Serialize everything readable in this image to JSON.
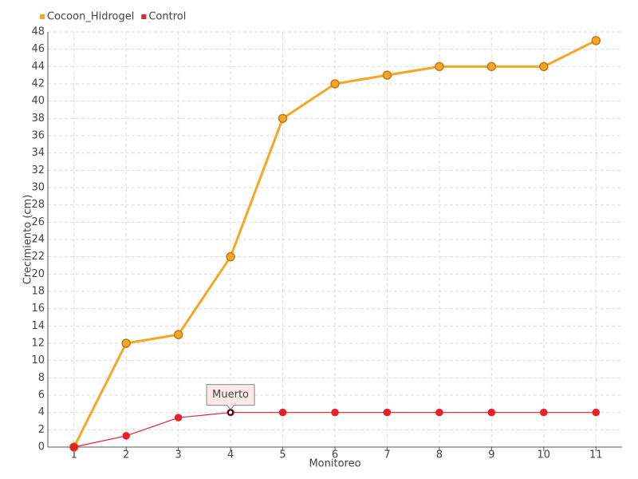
{
  "chart_data": {
    "type": "line",
    "categories": [
      "1",
      "2",
      "3",
      "4",
      "5",
      "6",
      "7",
      "8",
      "9",
      "10",
      "11"
    ],
    "series": [
      {
        "name": "Cocoon_Hidrogel",
        "color": "#f5a623",
        "values": [
          0,
          12,
          13,
          22,
          38,
          42,
          43,
          44,
          44,
          44,
          47
        ]
      },
      {
        "name": "Control",
        "color": "#e8202a",
        "values": [
          0,
          1.3,
          3.4,
          4,
          4,
          4,
          4,
          4,
          4,
          4,
          4
        ]
      }
    ],
    "ylim": [
      0,
      48
    ],
    "yticks": [
      0,
      2,
      4,
      6,
      8,
      10,
      12,
      14,
      16,
      18,
      20,
      22,
      24,
      26,
      28,
      30,
      32,
      34,
      36,
      38,
      40,
      42,
      44,
      46,
      48
    ],
    "xlabel": "Monitoreo",
    "ylabel": "Crecimiento (cm)",
    "grid": true,
    "legend": "top-left",
    "annotation": {
      "text": "Muerto",
      "series": "Control",
      "category": "4"
    }
  }
}
